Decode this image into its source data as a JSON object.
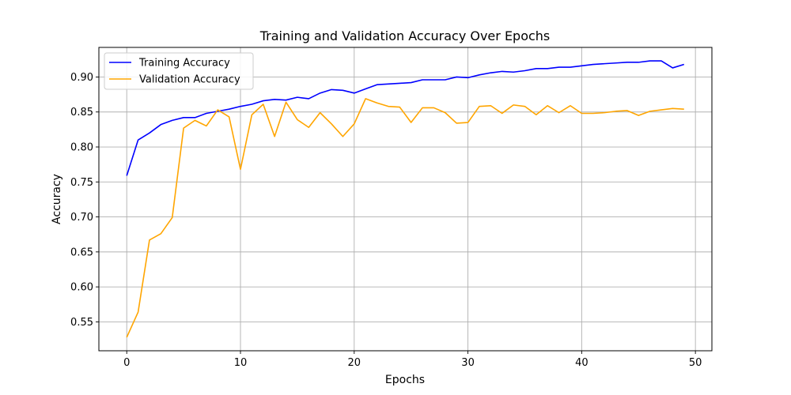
{
  "chart_data": {
    "type": "line",
    "title": "Training and Validation Accuracy Over Epochs",
    "xlabel": "Epochs",
    "ylabel": "Accuracy",
    "xlim": [
      -2.45,
      51.45
    ],
    "ylim": [
      0.5087,
      0.9423
    ],
    "xticks": [
      0,
      10,
      20,
      30,
      40,
      50
    ],
    "yticks": [
      0.55,
      0.6,
      0.65,
      0.7,
      0.75,
      0.8,
      0.85,
      0.9
    ],
    "grid": true,
    "legend_position": "top-left",
    "x": [
      0,
      1,
      2,
      3,
      4,
      5,
      6,
      7,
      8,
      9,
      10,
      11,
      12,
      13,
      14,
      15,
      16,
      17,
      18,
      19,
      20,
      21,
      22,
      23,
      24,
      25,
      26,
      27,
      28,
      29,
      30,
      31,
      32,
      33,
      34,
      35,
      36,
      37,
      38,
      39,
      40,
      41,
      42,
      43,
      44,
      45,
      46,
      47,
      48,
      49
    ],
    "series": [
      {
        "name": "Training Accuracy",
        "color": "#0000ff",
        "values": [
          0.759,
          0.81,
          0.82,
          0.832,
          0.838,
          0.842,
          0.842,
          0.848,
          0.851,
          0.854,
          0.858,
          0.861,
          0.866,
          0.868,
          0.867,
          0.871,
          0.869,
          0.877,
          0.882,
          0.881,
          0.877,
          0.883,
          0.889,
          0.89,
          0.891,
          0.892,
          0.896,
          0.896,
          0.896,
          0.9,
          0.899,
          0.903,
          0.906,
          0.908,
          0.907,
          0.909,
          0.912,
          0.912,
          0.914,
          0.914,
          0.916,
          0.918,
          0.919,
          0.92,
          0.921,
          0.921,
          0.923,
          0.923,
          0.913,
          0.918
        ]
      },
      {
        "name": "Validation Accuracy",
        "color": "#ffa500",
        "values": [
          0.528,
          0.564,
          0.667,
          0.676,
          0.699,
          0.827,
          0.838,
          0.83,
          0.853,
          0.843,
          0.768,
          0.846,
          0.861,
          0.815,
          0.864,
          0.839,
          0.828,
          0.849,
          0.833,
          0.815,
          0.833,
          0.869,
          0.863,
          0.858,
          0.857,
          0.835,
          0.856,
          0.856,
          0.849,
          0.834,
          0.835,
          0.858,
          0.859,
          0.848,
          0.86,
          0.858,
          0.846,
          0.859,
          0.849,
          0.859,
          0.848,
          0.848,
          0.849,
          0.851,
          0.852,
          0.845,
          0.851,
          0.853,
          0.855,
          0.854
        ]
      }
    ]
  }
}
